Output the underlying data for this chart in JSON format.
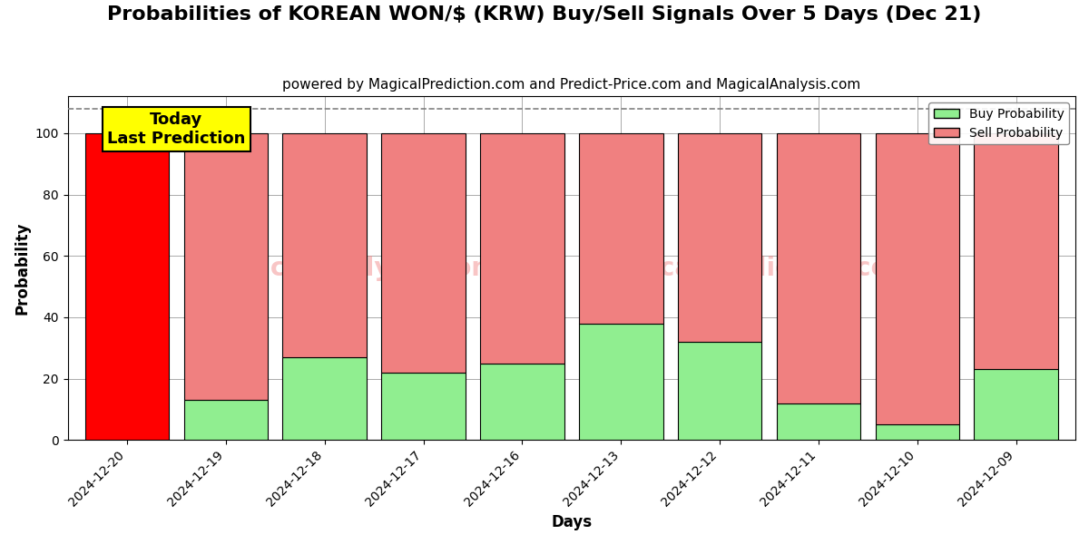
{
  "title": "Probabilities of KOREAN WON/$ (KRW) Buy/Sell Signals Over 5 Days (Dec 21)",
  "subtitle": "powered by MagicalPrediction.com and Predict-Price.com and MagicalAnalysis.com",
  "xlabel": "Days",
  "ylabel": "Probability",
  "categories": [
    "2024-12-20",
    "2024-12-19",
    "2024-12-18",
    "2024-12-17",
    "2024-12-16",
    "2024-12-13",
    "2024-12-12",
    "2024-12-11",
    "2024-12-10",
    "2024-12-09"
  ],
  "buy_values": [
    0,
    13,
    27,
    22,
    25,
    38,
    32,
    12,
    5,
    23
  ],
  "sell_values": [
    100,
    87,
    73,
    78,
    75,
    62,
    68,
    88,
    95,
    77
  ],
  "today_bar_index": 0,
  "today_bar_color": "#FF0000",
  "buy_color": "#90EE90",
  "sell_color": "#F08080",
  "today_label": "Today\nLast Prediction",
  "today_label_bg": "#FFFF00",
  "ylim": [
    0,
    112
  ],
  "dashed_line_y": 108,
  "title_fontsize": 16,
  "subtitle_fontsize": 11,
  "legend_labels": [
    "Buy Probability",
    "Sell Probability"
  ],
  "bar_width": 0.85,
  "grid_color": "#aaaaaa",
  "background_color": "#ffffff"
}
